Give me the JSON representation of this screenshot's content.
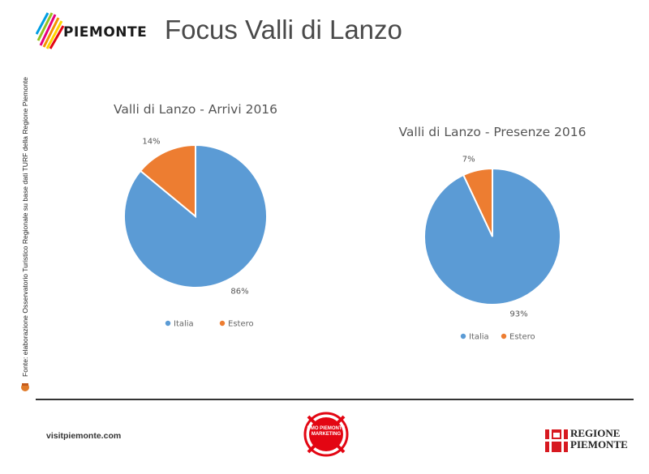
{
  "header": {
    "logo_text": "PIEMONTE",
    "title": "Focus Valli di Lanzo"
  },
  "source_note": "Fonte: elaborazione Osservatorio Turistico Regionale su base dati TURF della Regione Piemonte",
  "colors": {
    "italia": "#5b9bd5",
    "estero": "#ed7d31",
    "footer_line": "#333333"
  },
  "chart_data": [
    {
      "type": "pie",
      "title": "Valli di Lanzo - Arrivi 2016",
      "categories": [
        "Italia",
        "Estero"
      ],
      "values": [
        86,
        14
      ],
      "labels": [
        "86%",
        "14%"
      ],
      "legend": "bottom"
    },
    {
      "type": "pie",
      "title": "Valli di Lanzo - Presenze 2016",
      "categories": [
        "Italia",
        "Estero"
      ],
      "values": [
        93,
        7
      ],
      "labels": [
        "93%",
        "7%"
      ],
      "legend": "bottom"
    }
  ],
  "footer": {
    "website": "visitpiemonte.com",
    "dmo_text": "DMO PIEMONTE MARKETING",
    "regione_line1": "REGIONE",
    "regione_line2": "PIEMONTE"
  }
}
